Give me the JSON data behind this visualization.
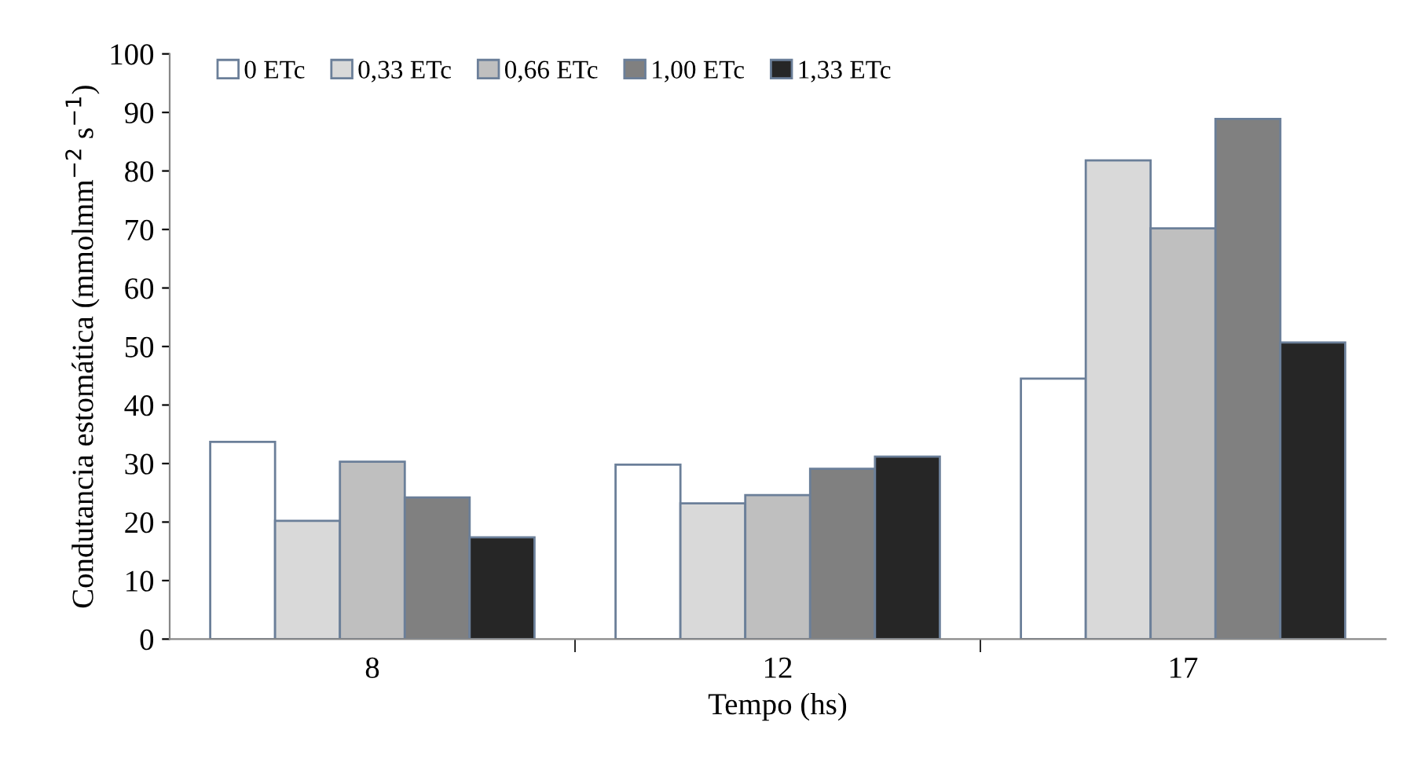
{
  "chart_data": {
    "type": "bar",
    "xlabel": "Tempo (hs)",
    "ylabel": "Condutancia estomática (mmolmm$^{−2}$ s$^{−1}$)",
    "categories": [
      "8",
      "12",
      "17"
    ],
    "series": [
      {
        "name": "0 ETc",
        "color": "#ffffff",
        "values": [
          33.7,
          29.8,
          44.5
        ]
      },
      {
        "name": "0,33 ETc",
        "color": "#d9d9d9",
        "values": [
          20.2,
          23.2,
          81.8
        ]
      },
      {
        "name": "0,66 ETc",
        "color": "#bfbfbf",
        "values": [
          30.3,
          24.6,
          70.2
        ]
      },
      {
        "name": "1,00 ETc",
        "color": "#808080",
        "values": [
          24.2,
          29.1,
          88.9
        ]
      },
      {
        "name": "1,33 ETc",
        "color": "#262626",
        "values": [
          17.4,
          31.2,
          50.7
        ]
      }
    ],
    "ylim": [
      0,
      100
    ],
    "yticks": [
      0,
      10,
      20,
      30,
      40,
      50,
      60,
      70,
      80,
      90,
      100
    ],
    "grid": false,
    "legend": "top left"
  }
}
